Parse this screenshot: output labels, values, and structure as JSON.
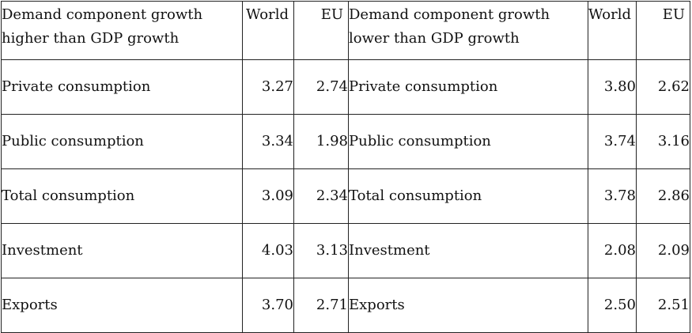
{
  "headers": {
    "left_title_line1": "Demand component growth",
    "left_title_line2": "higher than GDP growth",
    "left_world": "World",
    "left_eu": "EU",
    "right_title_line1": "Demand component growth",
    "right_title_line2": "lower than GDP growth",
    "right_world": "World",
    "right_eu": "EU"
  },
  "rows": [
    {
      "left_label": "Private consumption",
      "left_world": "3.27",
      "left_eu": "2.74",
      "right_label": "Private consumption",
      "right_world": "3.80",
      "right_eu": "2.62"
    },
    {
      "left_label": "Public consumption",
      "left_world": "3.34",
      "left_eu": "1.98",
      "right_label": "Public consumption",
      "right_world": "3.74",
      "right_eu": "3.16"
    },
    {
      "left_label": "Total consumption",
      "left_world": "3.09",
      "left_eu": "2.34",
      "right_label": "Total consumption",
      "right_world": "3.78",
      "right_eu": "2.86"
    },
    {
      "left_label": "Investment",
      "left_world": "4.03",
      "left_eu": "3.13",
      "right_label": "Investment",
      "right_world": "2.08",
      "right_eu": "2.09"
    },
    {
      "left_label": "Exports",
      "left_world": "3.70",
      "left_eu": "2.71",
      "right_label": "Exports",
      "right_world": "2.50",
      "right_eu": "2.51"
    }
  ]
}
